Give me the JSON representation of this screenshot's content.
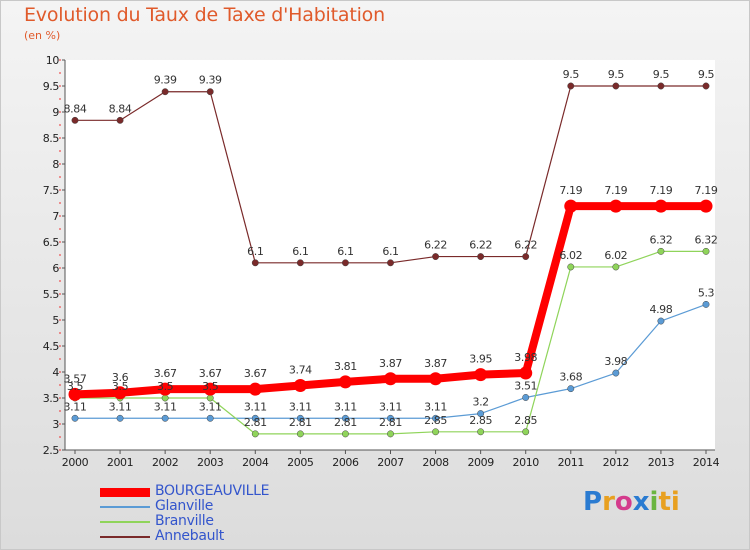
{
  "title": "Evolution du Taux de Taxe d'Habitation",
  "subtitle": "(en %)",
  "logo": [
    "P",
    "r",
    "o",
    "x",
    "i",
    "ti"
  ],
  "chart_data": {
    "type": "line",
    "x": [
      "2000",
      "2001",
      "2002",
      "2003",
      "2004",
      "2005",
      "2006",
      "2007",
      "2008",
      "2009",
      "2010",
      "2011",
      "2012",
      "2013",
      "2014"
    ],
    "ylim": [
      2.5,
      10
    ],
    "yticks": [
      "2.5",
      "3",
      "3.5",
      "4",
      "4.5",
      "5",
      "5.5",
      "6",
      "6.5",
      "7",
      "7.5",
      "8",
      "8.5",
      "9",
      "9.5",
      "10"
    ],
    "grid": false,
    "legend_position": "bottom-left",
    "series": [
      {
        "name": "BOURGEAUVILLE",
        "color": "#ff0000",
        "values": [
          3.57,
          3.6,
          3.67,
          3.67,
          3.67,
          3.74,
          3.81,
          3.87,
          3.87,
          3.95,
          3.98,
          7.19,
          7.19,
          7.19,
          7.19
        ],
        "labels": [
          "3.57",
          "3.6",
          "3.67",
          "3.67",
          "3.67",
          "3.74",
          "3.81",
          "3.87",
          "3.87",
          "3.95",
          "3.98",
          "7.19",
          "7.19",
          "7.19",
          "7.19"
        ]
      },
      {
        "name": "Glanville",
        "color": "#5b9bd5",
        "values": [
          3.11,
          3.11,
          3.11,
          3.11,
          3.11,
          3.11,
          3.11,
          3.11,
          3.11,
          3.2,
          3.51,
          3.68,
          3.98,
          4.98,
          5.3
        ],
        "labels": [
          "3.11",
          "3.11",
          "3.11",
          "3.11",
          "3.11",
          "3.11",
          "3.11",
          "3.11",
          "3.11",
          "3.2",
          "3.51",
          "3.68",
          "3.98",
          "4.98",
          "5.3"
        ]
      },
      {
        "name": "Branville",
        "color": "#8fd45a",
        "values": [
          3.5,
          3.5,
          3.5,
          3.5,
          2.81,
          2.81,
          2.81,
          2.81,
          2.85,
          2.85,
          2.85,
          6.02,
          6.02,
          6.32,
          6.32
        ],
        "labels": [
          "3.5",
          "3.5",
          "3.5",
          "3.5",
          "2.81",
          "2.81",
          "2.81",
          "2.81",
          "2.85",
          "2.85",
          "2.85",
          "6.02",
          "6.02",
          "6.32",
          "6.32"
        ]
      },
      {
        "name": "Annebault",
        "color": "#7a2a2a",
        "values": [
          8.84,
          8.84,
          9.39,
          9.39,
          6.1,
          6.1,
          6.1,
          6.1,
          6.22,
          6.22,
          6.22,
          9.5,
          9.5,
          9.5,
          9.5
        ],
        "labels": [
          "8.84",
          "8.84",
          "9.39",
          "9.39",
          "6.1",
          "6.1",
          "6.1",
          "6.1",
          "6.22",
          "6.22",
          "6.22",
          "9.5",
          "9.5",
          "9.5",
          "9.5"
        ]
      }
    ]
  }
}
